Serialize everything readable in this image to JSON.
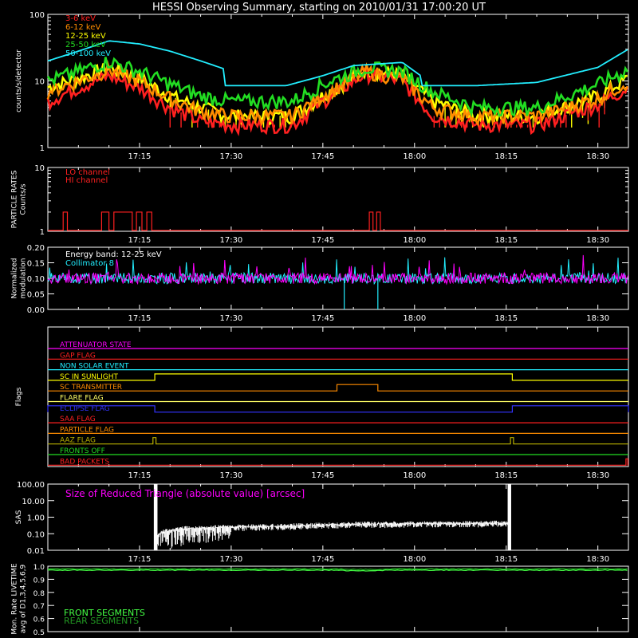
{
  "title": "HESSI Observing Summary, starting on 2010/01/31 17:00:20 UT",
  "time_ticks": [
    "17:15",
    "17:30",
    "17:45",
    "18:00",
    "18:15",
    "18:30"
  ],
  "colors": {
    "3-6": "#ff2020",
    "6-12": "#ff8c00",
    "12-25": "#ffff00",
    "25-50": "#22dd22",
    "50-100": "#22eeff",
    "magenta": "#ff00ff",
    "red": "#ff2020"
  },
  "chart_data": [
    {
      "type": "line",
      "name": "count_rates",
      "ylabel": "counts/s/detector",
      "yscale": "log",
      "ylim": [
        1,
        100
      ],
      "y_ticks": [
        "1",
        "10",
        "100"
      ],
      "x_range_minutes": [
        0,
        95
      ],
      "legend": [
        "3-6 keV",
        "6-12 keV",
        "12-25 keV",
        "25-50 keV",
        "50-100 keV"
      ],
      "series": [
        {
          "name": "50-100 keV",
          "x": [
            0,
            5,
            10,
            15,
            20,
            25,
            29,
            29,
            39,
            45,
            50,
            58,
            61,
            61,
            70,
            80,
            90,
            95
          ],
          "y": [
            20,
            28,
            40,
            36,
            28,
            20,
            15,
            8.5,
            8.5,
            12,
            17,
            19,
            12,
            8.5,
            8.5,
            9.5,
            16,
            30
          ]
        },
        {
          "name": "25-50 keV",
          "x": [
            0,
            5,
            10,
            15,
            20,
            25,
            30,
            40,
            45,
            52,
            58,
            63,
            70,
            80,
            90,
            95
          ],
          "y": [
            10,
            14,
            20,
            14,
            9,
            6,
            5,
            5,
            9,
            16,
            14,
            7,
            4,
            4,
            9,
            15
          ]
        },
        {
          "name": "12-25 keV",
          "x": [
            0,
            5,
            10,
            15,
            20,
            25,
            30,
            40,
            45,
            52,
            58,
            63,
            70,
            80,
            90,
            95
          ],
          "y": [
            8,
            11,
            16,
            11,
            6,
            4,
            3,
            3,
            6,
            15,
            12,
            5,
            3,
            3,
            6,
            11
          ]
        },
        {
          "name": "6-12 keV",
          "x": [
            0,
            5,
            10,
            15,
            20,
            25,
            30,
            40,
            45,
            52,
            58,
            63,
            70,
            80,
            90,
            95
          ],
          "y": [
            7,
            10,
            15,
            10,
            5.5,
            3.5,
            3,
            3,
            6,
            14,
            11,
            4,
            3,
            3,
            5.5,
            10
          ]
        },
        {
          "name": "3-6 keV",
          "x": [
            0,
            5,
            10,
            15,
            20,
            25,
            30,
            40,
            45,
            52,
            58,
            63,
            70,
            80,
            90,
            95
          ],
          "y": [
            5,
            8,
            12,
            8,
            4,
            2.5,
            2.2,
            2.2,
            5,
            13,
            10,
            3,
            2.2,
            2.2,
            4.5,
            8
          ]
        }
      ]
    },
    {
      "type": "line",
      "name": "particle_rates",
      "ylabel_lines": [
        "PARTICLE RATES",
        "Counts/s"
      ],
      "yscale": "log",
      "ylim": [
        1,
        10
      ],
      "y_ticks": [
        "1",
        "10"
      ],
      "legend": [
        "LO channel",
        "HI channel"
      ],
      "spikes_minutes": [
        [
          2.5,
          3.2
        ],
        [
          8.8,
          10.0
        ],
        [
          10.8,
          13.8
        ],
        [
          14.5,
          15.4
        ],
        [
          16.2,
          17.0
        ],
        [
          52.6,
          53.2
        ],
        [
          53.8,
          54.4
        ]
      ],
      "spike_level": 2
    },
    {
      "type": "line",
      "name": "modulation",
      "ylabel_lines": [
        "Normalized",
        "modulation"
      ],
      "ylim": [
        0,
        0.2
      ],
      "y_ticks": [
        "0.00",
        "0.05",
        "0.10",
        "0.15",
        "0.20"
      ],
      "annotation_lines": [
        "Energy band: 12-25 keV",
        "Collimator 8"
      ],
      "baseline": 0.1,
      "dropouts_minutes": [
        48.5,
        54.0
      ]
    },
    {
      "type": "line",
      "name": "flags",
      "ylabel": "Flags",
      "flags": [
        {
          "label": "ATTENUATOR STATE",
          "color": "#ff00ff",
          "high": []
        },
        {
          "label": "GAP FLAG",
          "color": "#ff2020",
          "high": []
        },
        {
          "label": "NON SOLAR EVENT",
          "color": "#22eeff",
          "high": []
        },
        {
          "label": "SC IN SUNLIGHT",
          "color": "#ffff00",
          "high": [
            [
              17.5,
              76
            ]
          ]
        },
        {
          "label": "SC TRANSMITTER",
          "color": "#ff8c00",
          "high": [
            [
              47.3,
              54.0
            ]
          ]
        },
        {
          "label": "FLARE FLAG",
          "color": "#ffff66",
          "high": []
        },
        {
          "label": "ECLIPSE FLAG",
          "color": "#3333ff",
          "high": [
            [
              0,
              17.5
            ],
            [
              76,
              95
            ]
          ]
        },
        {
          "label": "SAA FLAG",
          "color": "#ff2020",
          "high": []
        },
        {
          "label": "PARTICLE FLAG",
          "color": "#ff8c00",
          "high": []
        },
        {
          "label": "AAZ FLAG",
          "color": "#b8b000",
          "high": [
            [
              17.2,
              17.7
            ],
            [
              75.7,
              76.2
            ]
          ]
        },
        {
          "label": "FRONTS OFF",
          "color": "#22dd22",
          "high": []
        },
        {
          "label": "BAD PACKETS",
          "color": "#ff2020",
          "high": [
            [
              94.6,
              94.9
            ]
          ]
        }
      ]
    },
    {
      "type": "line",
      "name": "sas",
      "ylabel": "SAS",
      "yscale": "log",
      "ylim": [
        0.01,
        100
      ],
      "y_ticks": [
        "0.01",
        "0.10",
        "1.00",
        "10.00",
        "100.00"
      ],
      "annotation": "Size of Reduced Triangle (absolute value) [arcsec]",
      "x": [
        17.6,
        18.5,
        22,
        30,
        40,
        50,
        60,
        70,
        75.5
      ],
      "y": [
        0.05,
        0.12,
        0.2,
        0.25,
        0.3,
        0.38,
        0.4,
        0.42,
        0.45
      ]
    },
    {
      "type": "line",
      "name": "livetime",
      "ylabel_lines": [
        "Mon. Rate LIVETIME",
        "avg of D1,3,4,5,6,9"
      ],
      "ylim": [
        0.5,
        1.0
      ],
      "y_ticks": [
        "0.5",
        "0.6",
        "0.7",
        "0.8",
        "0.9",
        "1.0"
      ],
      "legend": [
        "FRONT SEGMENTS",
        "REAR SEGMENTS"
      ],
      "front_level": 0.97,
      "rear_level": 0.98
    }
  ]
}
